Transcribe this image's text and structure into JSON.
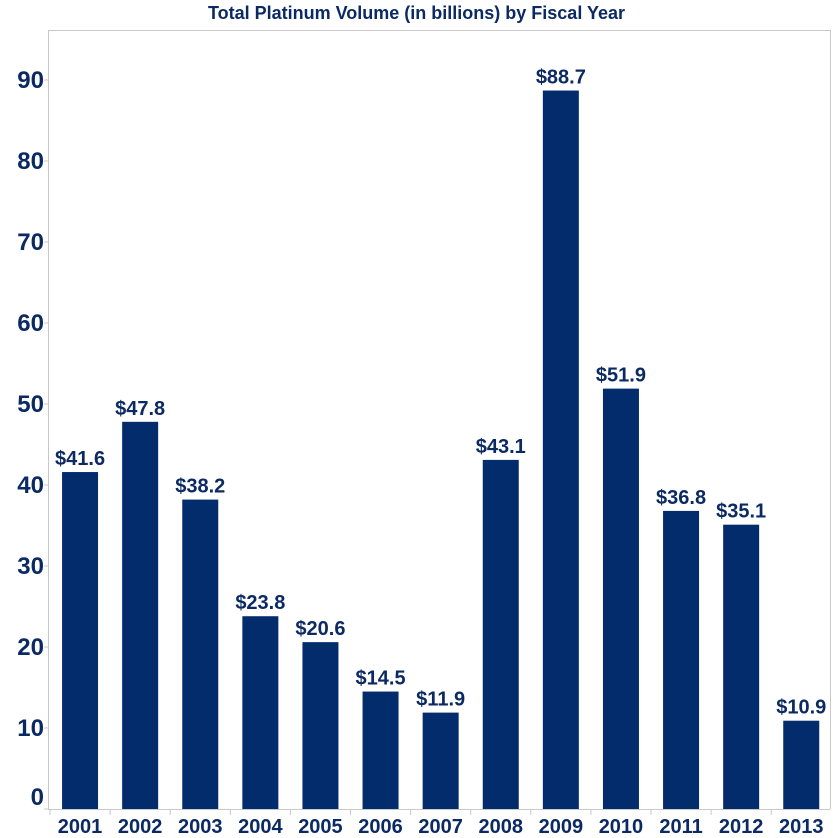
{
  "chart_data": {
    "type": "bar",
    "title": "Total Platinum Volume (in billions) by Fiscal Year",
    "xlabel": "",
    "ylabel": "",
    "categories": [
      "2001",
      "2002",
      "2003",
      "2004",
      "2005",
      "2006",
      "2007",
      "2008",
      "2009",
      "2010",
      "2011",
      "2012",
      "2013"
    ],
    "values": [
      41.6,
      47.8,
      38.2,
      23.8,
      20.6,
      14.5,
      11.9,
      43.1,
      88.7,
      51.9,
      36.8,
      35.1,
      10.9
    ],
    "data_labels": [
      "$41.6",
      "$47.8",
      "$38.2",
      "$23.8",
      "$20.6",
      "$14.5",
      "$11.9",
      "$43.1",
      "$88.7",
      "$51.9",
      "$36.8",
      "$35.1",
      "$10.9"
    ],
    "y_ticks": [
      0,
      10,
      20,
      30,
      40,
      50,
      60,
      70,
      80,
      90
    ],
    "ylim": [
      0,
      96
    ],
    "grid": false,
    "legend": "none",
    "colors": {
      "bar": "#022c6b",
      "text": "#0b2a63",
      "axis": "#c8c8c8"
    }
  }
}
